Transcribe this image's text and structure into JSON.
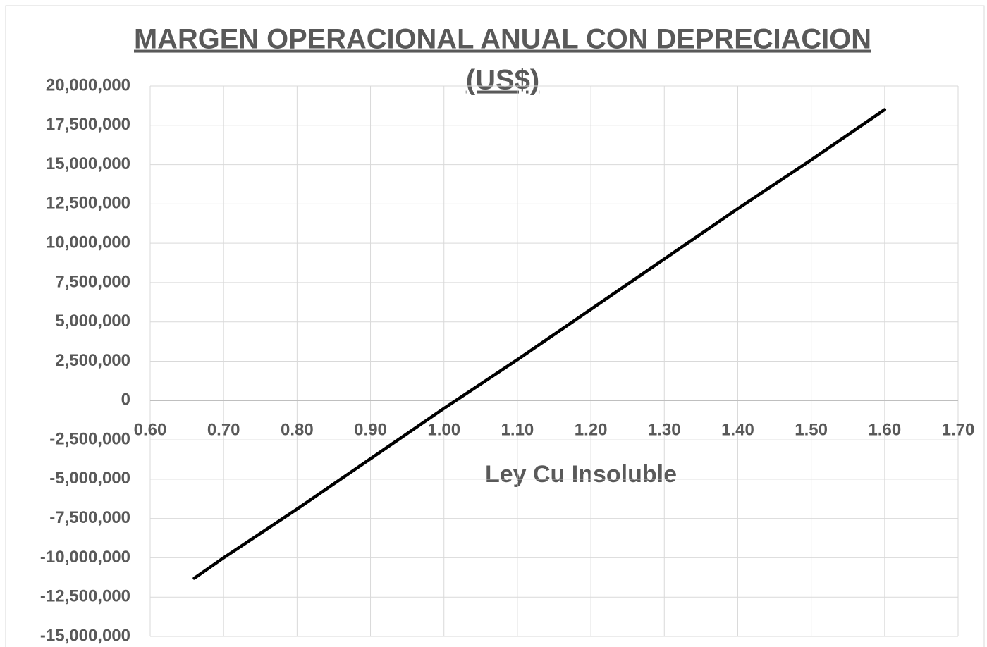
{
  "chart_data": {
    "type": "line",
    "title": [
      "MARGEN OPERACIONAL ANUAL CON DEPRECIACION",
      "(US$)"
    ],
    "x_label": "Ley Cu Insoluble",
    "x": [
      0.66,
      0.7,
      0.8,
      0.9,
      1.0,
      1.1,
      1.2,
      1.3,
      1.4,
      1.5,
      1.6
    ],
    "series": [
      {
        "color": "#000000",
        "values": [
          -11300000,
          -10000000,
          -6900000,
          -3700000,
          -500000,
          2600000,
          5800000,
          9000000,
          12200000,
          15300000,
          18500000
        ]
      }
    ],
    "xlim": [
      0.6,
      1.7
    ],
    "xticks": [
      {
        "value": 0.6,
        "label": "0.60"
      },
      {
        "value": 0.7,
        "label": "0.70"
      },
      {
        "value": 0.8,
        "label": "0.80"
      },
      {
        "value": 0.9,
        "label": "0.90"
      },
      {
        "value": 1.0,
        "label": "1.00"
      },
      {
        "value": 1.1,
        "label": "1.10"
      },
      {
        "value": 1.2,
        "label": "1.20"
      },
      {
        "value": 1.3,
        "label": "1.30"
      },
      {
        "value": 1.4,
        "label": "1.40"
      },
      {
        "value": 1.5,
        "label": "1.50"
      },
      {
        "value": 1.6,
        "label": "1.60"
      },
      {
        "value": 1.7,
        "label": "1.70"
      }
    ],
    "ylim": [
      -15000000,
      20000000
    ],
    "yticks": [
      {
        "value": 20000000,
        "label": "20,000,000"
      },
      {
        "value": 17500000,
        "label": "17,500,000"
      },
      {
        "value": 15000000,
        "label": "15,000,000"
      },
      {
        "value": 12500000,
        "label": "12,500,000"
      },
      {
        "value": 10000000,
        "label": "10,000,000"
      },
      {
        "value": 7500000,
        "label": "7,500,000"
      },
      {
        "value": 5000000,
        "label": "5,000,000"
      },
      {
        "value": 2500000,
        "label": "2,500,000"
      },
      0,
      {
        "value": -2500000,
        "label": "-2,500,000"
      },
      {
        "value": -5000000,
        "label": "-5,000,000"
      },
      {
        "value": -7500000,
        "label": "-7,500,000"
      },
      {
        "value": -10000000,
        "label": "-10,000,000"
      },
      {
        "value": -12500000,
        "label": "-12,500,000"
      },
      {
        "value": -15000000,
        "label": "-15,000,000"
      }
    ],
    "grid": true
  }
}
